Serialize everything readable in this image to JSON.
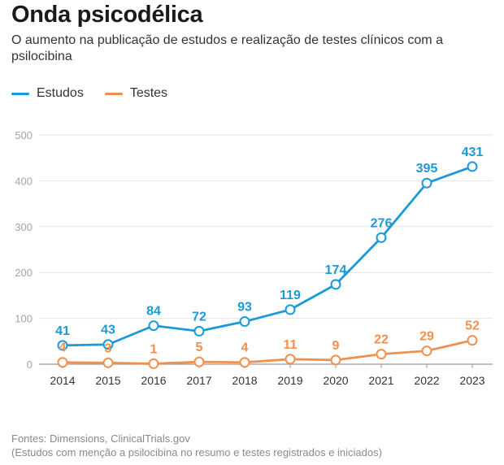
{
  "header": {
    "title": "Onda psicodélica",
    "subtitle": "O aumento na publicação de estudos e realização de testes clínicos com a psilocibina"
  },
  "footer": {
    "source": "Fontes: Dimensions, ClinicalTrials.gov",
    "note": "(Estudos com menção a psilocibina no resumo e testes registrados e iniciados)"
  },
  "chart_data": {
    "type": "line",
    "title": "Onda psicodélica",
    "subtitle": "O aumento na publicação de estudos e realização de testes clínicos com a psilocibina",
    "xlabel": "",
    "ylabel": "",
    "x": [
      "2014",
      "2015",
      "2016",
      "2017",
      "2018",
      "2019",
      "2020",
      "2021",
      "2022",
      "2023"
    ],
    "ylim": [
      0,
      500
    ],
    "yticks": [
      0,
      100,
      200,
      300,
      400,
      500
    ],
    "grid": true,
    "legend_position": "top-left",
    "series": [
      {
        "name": "Estudos",
        "color": "#1a9ad6",
        "values": [
          41,
          43,
          84,
          72,
          93,
          119,
          174,
          276,
          395,
          431
        ]
      },
      {
        "name": "Testes",
        "color": "#f0904f",
        "values": [
          4,
          3,
          1,
          5,
          4,
          11,
          9,
          22,
          29,
          52
        ]
      }
    ]
  }
}
